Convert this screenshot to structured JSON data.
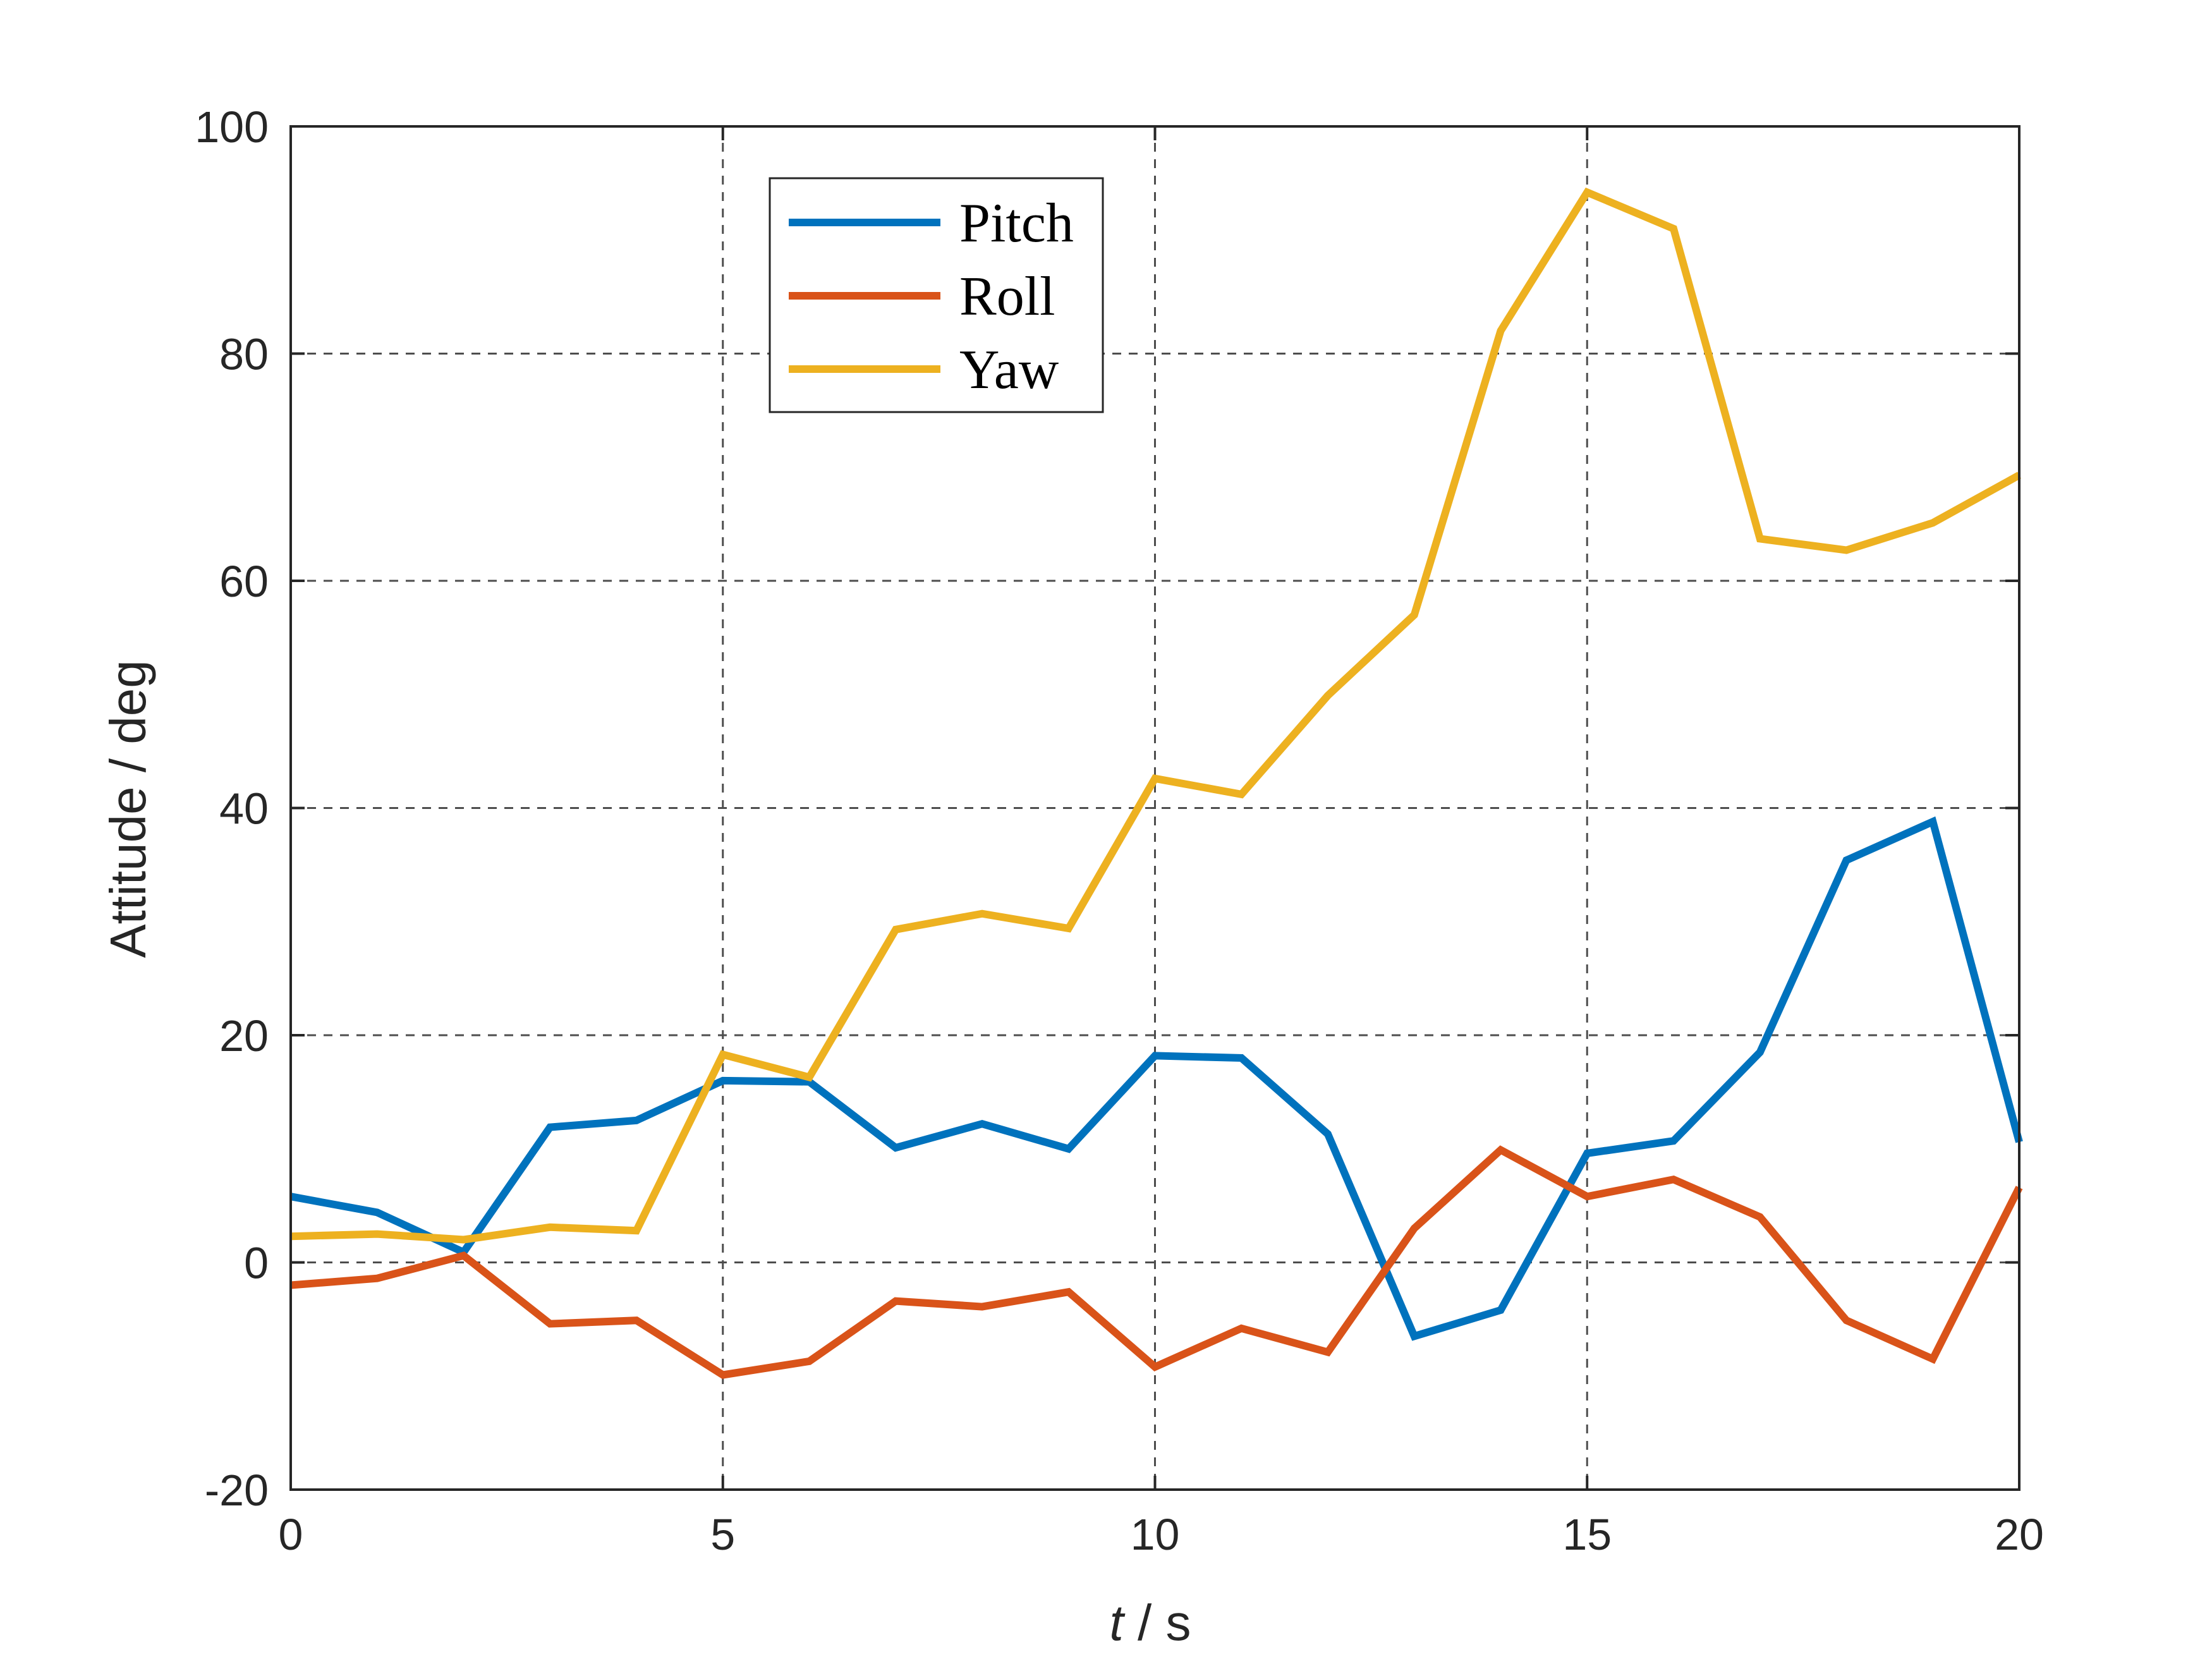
{
  "chart_data": {
    "type": "line",
    "xlabel_italic": "t",
    "xlabel_rest": " / s",
    "ylabel": "Attitude / deg",
    "xlim": [
      0,
      20
    ],
    "ylim": [
      -20,
      100
    ],
    "xticks": [
      0,
      5,
      10,
      15,
      20
    ],
    "yticks": [
      -20,
      0,
      20,
      40,
      60,
      80,
      100
    ],
    "grid": true,
    "legend_position": "top-center-left",
    "x": [
      0,
      1,
      2,
      3,
      4,
      5,
      6,
      7,
      8,
      9,
      10,
      11,
      12,
      13,
      14,
      15,
      16,
      17,
      18,
      19,
      20
    ],
    "series": [
      {
        "name": "Pitch",
        "color": "#0072BD",
        "values": [
          5.8,
          4.4,
          0.9,
          11.9,
          12.5,
          16.0,
          15.9,
          10.1,
          12.2,
          10.0,
          18.2,
          18.0,
          11.3,
          -6.5,
          -4.2,
          9.6,
          10.7,
          18.5,
          35.4,
          38.8,
          10.6
        ]
      },
      {
        "name": "Roll",
        "color": "#D95319",
        "values": [
          -2.0,
          -1.4,
          0.6,
          -5.4,
          -5.1,
          -9.9,
          -8.7,
          -3.4,
          -3.9,
          -2.6,
          -9.2,
          -5.8,
          -7.9,
          3.0,
          9.9,
          5.8,
          7.3,
          4.0,
          -5.1,
          -8.5,
          6.6
        ]
      },
      {
        "name": "Yaw",
        "color": "#EDB120",
        "values": [
          2.3,
          2.5,
          2.0,
          3.1,
          2.8,
          18.3,
          16.3,
          29.3,
          30.7,
          29.4,
          42.6,
          41.2,
          49.9,
          57.0,
          82.0,
          94.2,
          91.0,
          63.7,
          62.7,
          65.1,
          69.3
        ]
      }
    ]
  }
}
